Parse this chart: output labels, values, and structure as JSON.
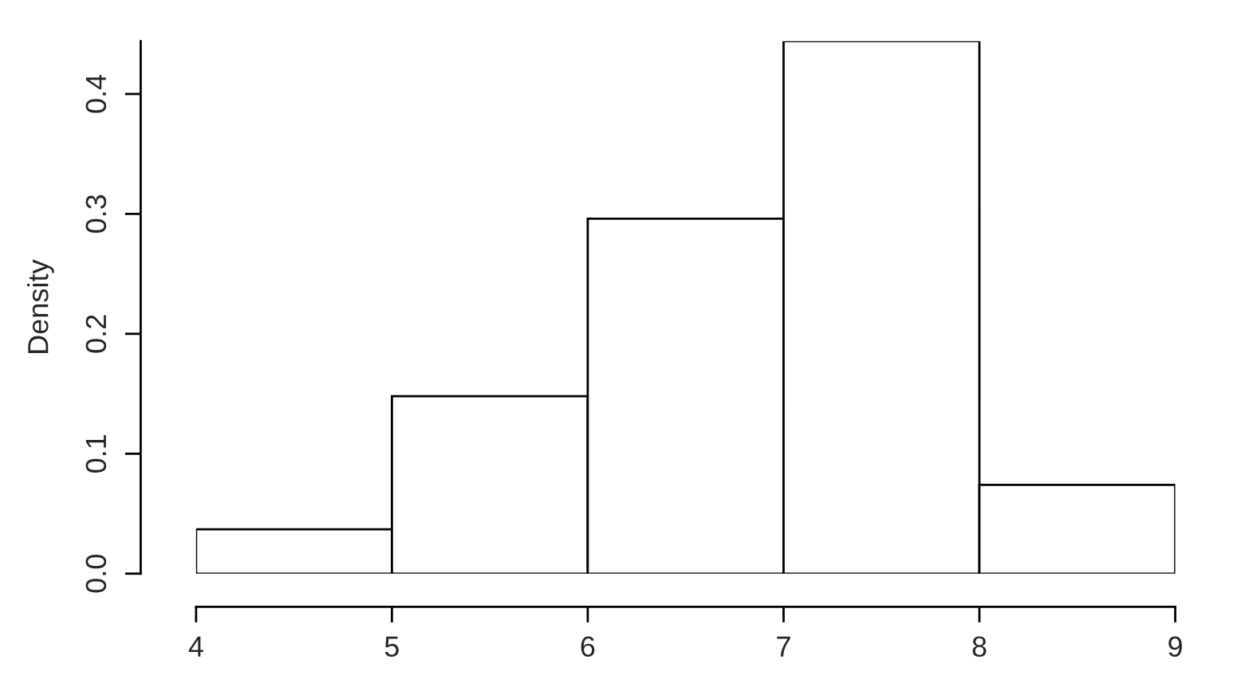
{
  "chart_data": {
    "type": "histogram",
    "ylabel": "Density",
    "bins": [
      4,
      5,
      6,
      7,
      8,
      9
    ],
    "values": [
      0.037,
      0.148,
      0.296,
      0.444,
      0.074
    ],
    "color": "#ffffff",
    "xlim": [
      4,
      9
    ],
    "ylim": [
      0,
      0.444
    ],
    "xticks": [
      4,
      5,
      6,
      7,
      8,
      9
    ],
    "yticks": [
      {
        "value": 0,
        "label": "0.0"
      },
      0.1,
      0.2,
      0.3,
      0.4
    ],
    "grid": false
  }
}
